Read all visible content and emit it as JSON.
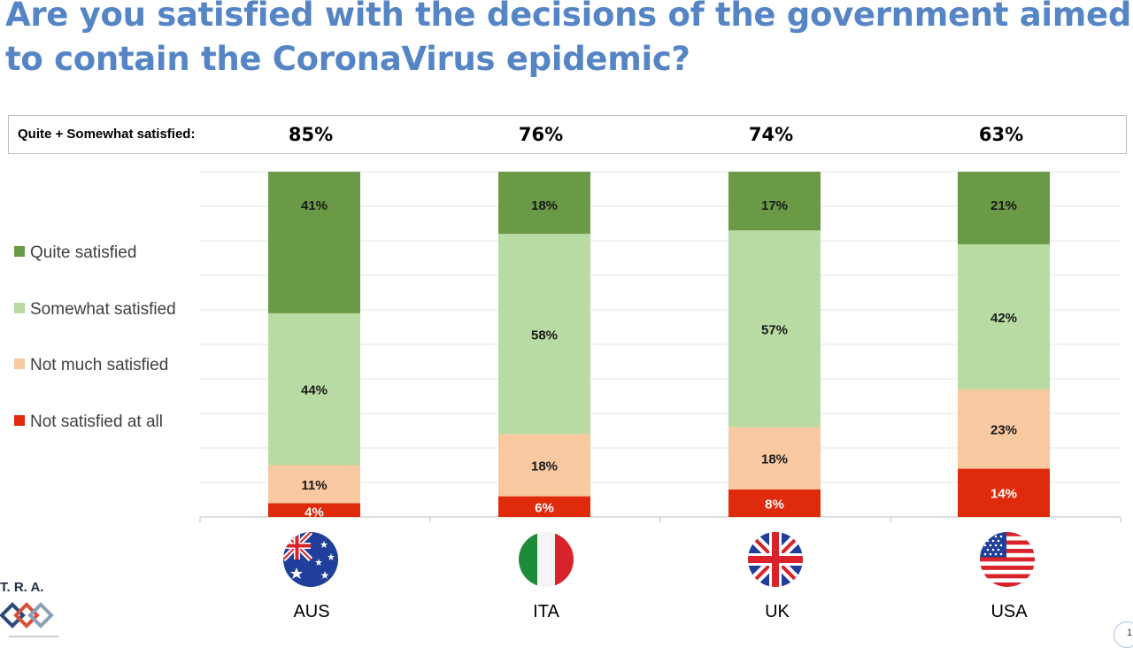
{
  "title_lines": [
    "Are you satisfied with the decisions of the government aimed",
    "to contain the CoronaVirus epidemic?"
  ],
  "header": {
    "label": "Quite + Somewhat satisfied:",
    "values": [
      "85%",
      "76%",
      "74%",
      "63%"
    ]
  },
  "colors": {
    "quite": "#6a9a45",
    "somewhat": "#b8dba3",
    "not_much": "#f8c8a0",
    "not_at_all": "#e02a0c",
    "title": "#5585c5"
  },
  "logo": {
    "text": "T. R. A.",
    "icon": "tra-logo-icon"
  },
  "page_number": "1",
  "chart_data": {
    "type": "bar",
    "stacked": true,
    "orientation": "vertical",
    "categories": [
      "AUS",
      "ITA",
      "UK",
      "USA"
    ],
    "flags": [
      "australia-flag-icon",
      "italy-flag-icon",
      "uk-flag-icon",
      "usa-flag-icon"
    ],
    "series": [
      {
        "name": "Not satisfied at all",
        "values": [
          4,
          6,
          8,
          14
        ],
        "labels": [
          "4%",
          "6%",
          "8%",
          "14%"
        ],
        "color": "#e02a0c"
      },
      {
        "name": "Not much satisfied",
        "values": [
          11,
          18,
          18,
          23
        ],
        "labels": [
          "11%",
          "18%",
          "18%",
          "23%"
        ],
        "color": "#f8c8a0"
      },
      {
        "name": "Somewhat satisfied",
        "values": [
          44,
          58,
          57,
          42
        ],
        "labels": [
          "44%",
          "58%",
          "57%",
          "42%"
        ],
        "color": "#b8dba3"
      },
      {
        "name": "Quite satisfied",
        "values": [
          41,
          18,
          17,
          21
        ],
        "labels": [
          "41%",
          "18%",
          "17%",
          "21%"
        ],
        "color": "#6a9a45"
      }
    ],
    "legend_order": [
      "Quite satisfied",
      "Somewhat satisfied",
      "Not much satisfied",
      "Not satisfied at all"
    ],
    "ylim": [
      0,
      100
    ],
    "grid": true,
    "legend_position": "left"
  }
}
